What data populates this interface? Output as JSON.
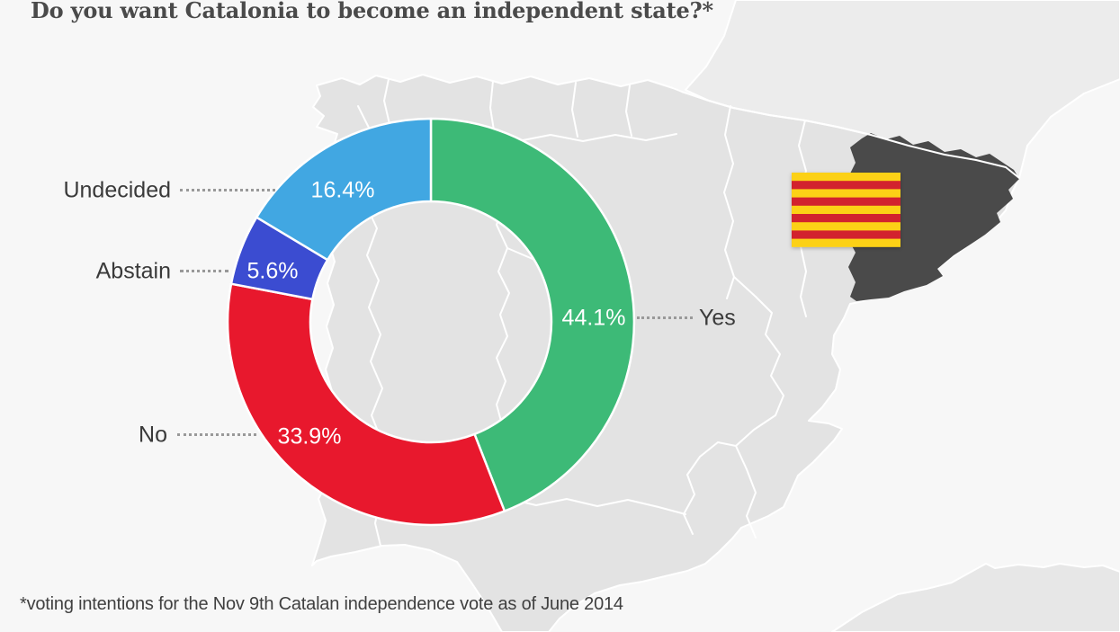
{
  "title": "Do you want Catalonia to become an independent state?*",
  "footnote": "*voting intentions for the Nov 9th Catalan independence vote as of June 2014",
  "chart_data": {
    "type": "pie",
    "subtype": "donut",
    "title": "Do you want Catalonia to become an independent state?*",
    "start_angle_deg": 0,
    "direction": "clockwise",
    "unit": "%",
    "total": 100,
    "slices": [
      {
        "label": "Yes",
        "value": 44.1,
        "display": "44.1%",
        "color": "#3dba77"
      },
      {
        "label": "No",
        "value": 33.9,
        "display": "33.9%",
        "color": "#e8182d"
      },
      {
        "label": "Abstain",
        "value": 5.6,
        "display": "5.6%",
        "color": "#3b4cd1"
      },
      {
        "label": "Undecided",
        "value": 16.4,
        "display": "16.4%",
        "color": "#41a7e2"
      }
    ],
    "legend_position": "callout-labels",
    "value_label_color": "#ffffff"
  },
  "map": {
    "name": "iberian-peninsula-map",
    "highlighted_region": "Catalonia",
    "colors": {
      "sea": "#f7f7f7",
      "land": "#e3e3e3",
      "france_land": "#ececec",
      "africa_land": "#e7e7e7",
      "border": "#ffffff",
      "catalonia": "#4a4a4a"
    },
    "flag": {
      "name": "senyera-catalan-flag",
      "stripe_count": 9,
      "colors": {
        "yellow": "#fcd116",
        "red": "#d2232e"
      }
    }
  },
  "text_colors": {
    "title": "#4a4a4a",
    "labels": "#3a3a3a",
    "footnote": "#404040",
    "leader_dots": "#999999"
  }
}
